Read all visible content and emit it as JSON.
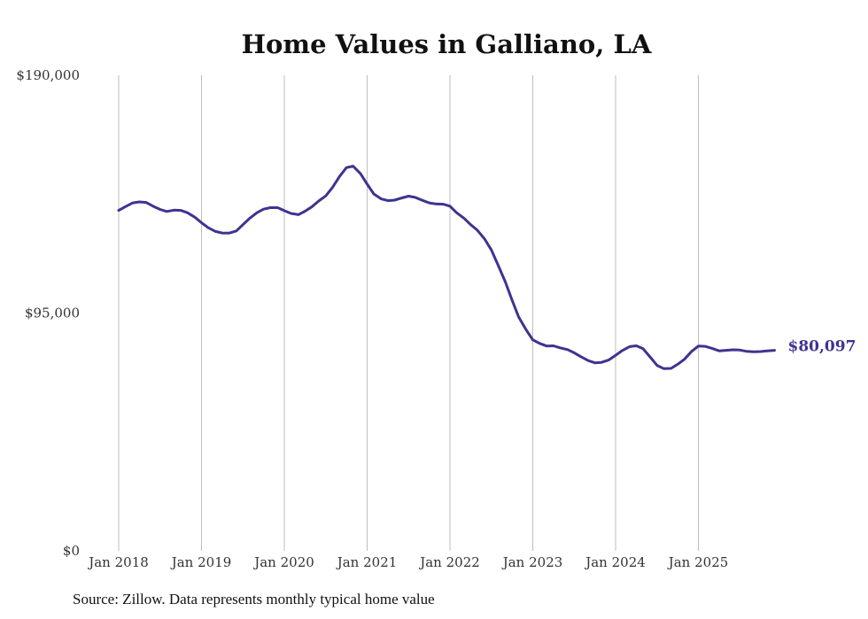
{
  "chart_data": {
    "type": "line",
    "title": "Home Values in Galliano, LA",
    "xlabel": "",
    "ylabel": "",
    "ylim": [
      0,
      190000
    ],
    "y_ticks": [
      {
        "value": 0,
        "label": "$0"
      },
      {
        "value": 95000,
        "label": "$95,000"
      },
      {
        "value": 190000,
        "label": "$190,000"
      }
    ],
    "x_ticks": [
      {
        "value": 2018.0,
        "label": "Jan 2018"
      },
      {
        "value": 2019.0,
        "label": "Jan 2019"
      },
      {
        "value": 2020.0,
        "label": "Jan 2020"
      },
      {
        "value": 2021.0,
        "label": "Jan 2021"
      },
      {
        "value": 2022.0,
        "label": "Jan 2022"
      },
      {
        "value": 2023.0,
        "label": "Jan 2023"
      },
      {
        "value": 2024.0,
        "label": "Jan 2024"
      },
      {
        "value": 2025.0,
        "label": "Jan 2025"
      }
    ],
    "xlim": [
      2018.0,
      2026.0
    ],
    "grid": "vertical",
    "series": [
      {
        "name": "Typical home value",
        "color": "#3d3490",
        "end_label": "$80,097",
        "x": [
          2018.0,
          2018.08,
          2018.17,
          2018.25,
          2018.33,
          2018.42,
          2018.5,
          2018.58,
          2018.67,
          2018.75,
          2018.83,
          2018.92,
          2019.0,
          2019.08,
          2019.17,
          2019.25,
          2019.33,
          2019.42,
          2019.5,
          2019.58,
          2019.67,
          2019.75,
          2019.83,
          2019.92,
          2020.0,
          2020.08,
          2020.17,
          2020.25,
          2020.33,
          2020.42,
          2020.5,
          2020.58,
          2020.67,
          2020.75,
          2020.83,
          2020.92,
          2021.0,
          2021.08,
          2021.17,
          2021.25,
          2021.33,
          2021.42,
          2021.5,
          2021.58,
          2021.67,
          2021.75,
          2021.83,
          2021.92,
          2022.0,
          2022.08,
          2022.17,
          2022.25,
          2022.33,
          2022.42,
          2022.5,
          2022.58,
          2022.67,
          2022.75,
          2022.83,
          2022.92,
          2023.0,
          2023.08,
          2023.17,
          2023.25,
          2023.33,
          2023.42,
          2023.5,
          2023.58,
          2023.67,
          2023.75,
          2023.83,
          2023.92,
          2024.0,
          2024.08,
          2024.17,
          2024.25,
          2024.33,
          2024.42,
          2024.5,
          2024.58,
          2024.67,
          2024.75,
          2024.83,
          2024.92,
          2025.0,
          2025.08,
          2025.17,
          2025.25,
          2025.33,
          2025.42,
          2025.5,
          2025.58,
          2025.67,
          2025.75,
          2025.83,
          2025.92
        ],
        "values": [
          136000,
          137500,
          139000,
          139400,
          139200,
          137600,
          136400,
          135600,
          136100,
          136000,
          135100,
          133300,
          131100,
          129100,
          127600,
          127000,
          126900,
          127800,
          130300,
          132800,
          135100,
          136500,
          137100,
          137100,
          135900,
          134800,
          134300,
          135700,
          137400,
          139900,
          141800,
          145100,
          149700,
          153100,
          153700,
          150700,
          146500,
          142600,
          140600,
          139900,
          140100,
          141000,
          141700,
          141200,
          140000,
          139000,
          138600,
          138500,
          137700,
          135100,
          132900,
          130300,
          128100,
          124500,
          120200,
          114300,
          107400,
          100200,
          93400,
          88300,
          84300,
          82900,
          81800,
          81900,
          81100,
          80400,
          79100,
          77600,
          76000,
          75100,
          75300,
          76300,
          78100,
          80000,
          81600,
          81900,
          80800,
          77300,
          74100,
          72800,
          72900,
          74500,
          76500,
          79700,
          81800,
          81700,
          80800,
          79900,
          80100,
          80300,
          80200,
          79700,
          79500,
          79600,
          79900,
          80097
        ]
      }
    ]
  },
  "footer": {
    "source": "Source: Zillow. Data represents monthly typical home value"
  }
}
